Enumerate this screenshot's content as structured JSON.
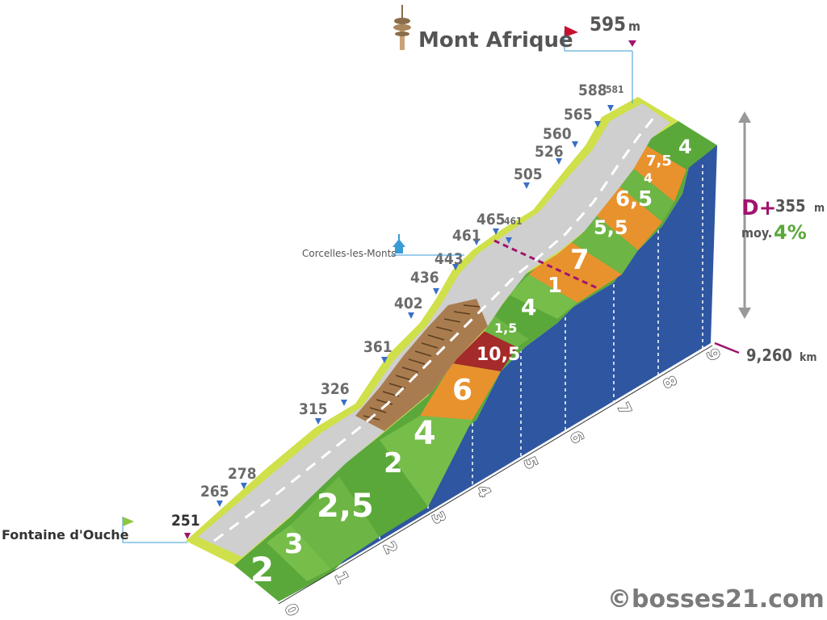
{
  "summit": {
    "name": "Mont Afrique",
    "altitude": "595",
    "unit": "m"
  },
  "start": {
    "name": "Fontaine d'Ouche",
    "altitude": "251"
  },
  "village": {
    "name": "Corcelles-les-Monts"
  },
  "stats": {
    "dplus_label": "D+",
    "dplus_value": "355",
    "dplus_unit": "m",
    "avg_label": "moy.",
    "avg_value": "4%"
  },
  "distance": {
    "value": "9,260",
    "unit": "km"
  },
  "copyright": "©bosses21.com",
  "altitude_markers": [
    "265",
    "278",
    "315",
    "326",
    "361",
    "402",
    "436",
    "443",
    "461",
    "465",
    "461",
    "505",
    "526",
    "560",
    "565",
    "588",
    "581"
  ],
  "km_labels": [
    "0",
    "1",
    "2",
    "3",
    "4",
    "5",
    "6",
    "7",
    "8",
    "9"
  ],
  "gradients": [
    {
      "label": "2",
      "color": "#5aa83a"
    },
    {
      "label": "3",
      "color": "#6db544"
    },
    {
      "label": "2,5",
      "color": "#6db544"
    },
    {
      "label": "2",
      "color": "#5aa83a"
    },
    {
      "label": "4",
      "color": "#6db544"
    },
    {
      "label": "6",
      "color": "#e8922e"
    },
    {
      "label": "10,5",
      "color": "#a52a2a"
    },
    {
      "label": "1,5",
      "color": "#6db544"
    },
    {
      "label": "4",
      "color": "#5aa83a"
    },
    {
      "label": "1",
      "color": "#6db544"
    },
    {
      "label": "7",
      "color": "#e8922e"
    },
    {
      "label": "5,5",
      "color": "#6db544"
    },
    {
      "label": "6,5",
      "color": "#e8922e"
    },
    {
      "label": "4",
      "color": "#6db544"
    },
    {
      "label": "7,5",
      "color": "#e8922e"
    },
    {
      "label": "4",
      "color": "#5aa83a"
    }
  ],
  "icons": {
    "summit": "tower-icon",
    "village": "church-icon",
    "start_flag": "green-flag-icon",
    "summit_flag": "red-flag-icon"
  }
}
